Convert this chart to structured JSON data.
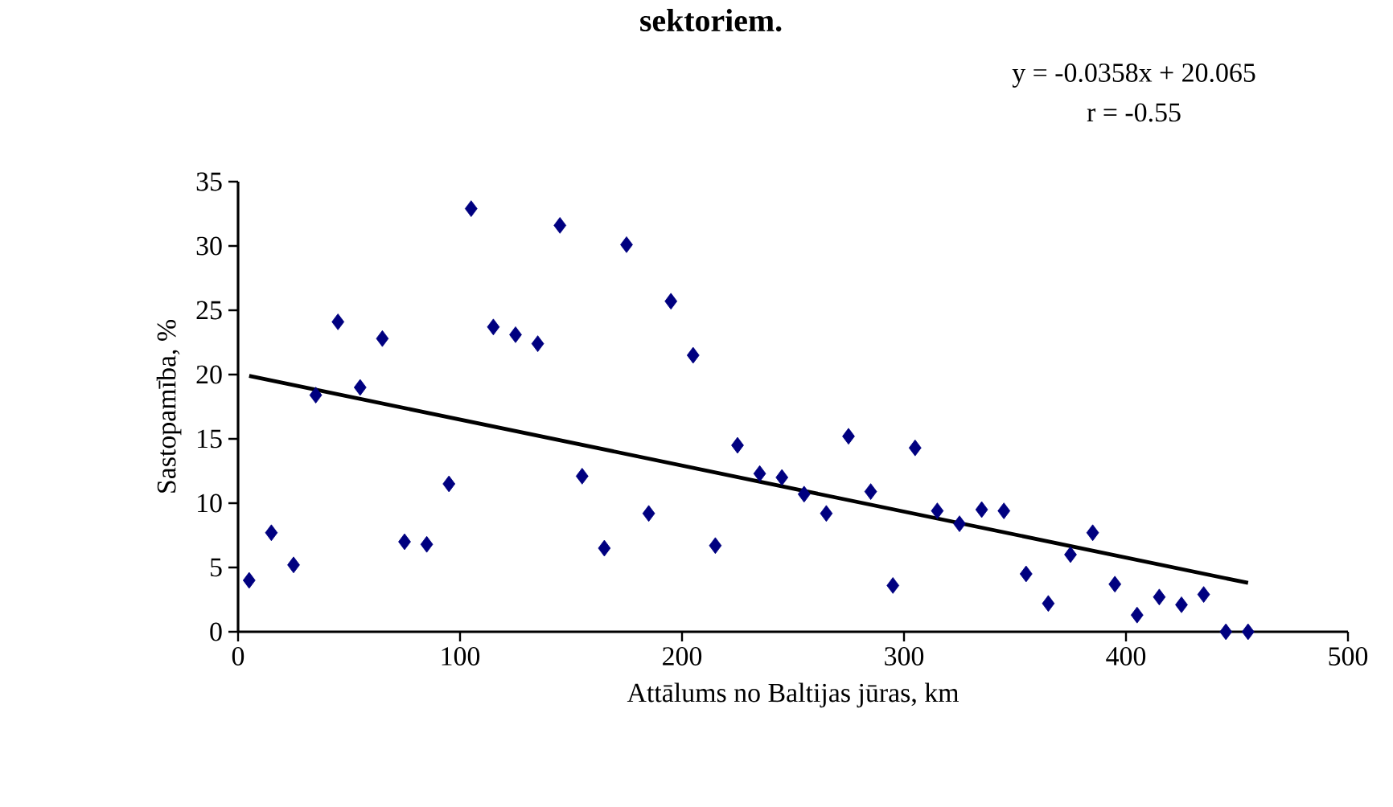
{
  "chart_data": {
    "type": "scatter",
    "title": "sektoriem.",
    "xlabel": "Attālums no Baltijas jūras, km",
    "ylabel": "Sastopamība, %",
    "annotations": [
      "y = -0.0358x + 20.065",
      "r = -0.55"
    ],
    "xlim": [
      0,
      500
    ],
    "xticks": [
      0,
      100,
      200,
      300,
      400,
      500
    ],
    "ylim": [
      0,
      35
    ],
    "yticks": [
      0,
      5,
      10,
      15,
      20,
      25,
      30,
      35
    ],
    "grid": false,
    "series": [
      {
        "marker": "diamond",
        "color": "#000080",
        "x": [
          5,
          15,
          25,
          35,
          45,
          55,
          65,
          75,
          85,
          95,
          105,
          115,
          125,
          135,
          145,
          155,
          165,
          175,
          185,
          195,
          205,
          215,
          225,
          235,
          245,
          255,
          265,
          275,
          285,
          295,
          305,
          315,
          325,
          335,
          345,
          355,
          365,
          375,
          385,
          395,
          405,
          415,
          425,
          435,
          445,
          455
        ],
        "values": [
          4.0,
          7.7,
          5.2,
          18.4,
          24.1,
          19.0,
          22.8,
          7.0,
          6.8,
          11.5,
          32.9,
          23.7,
          23.1,
          22.4,
          31.6,
          12.1,
          6.5,
          30.1,
          9.2,
          25.7,
          21.5,
          6.7,
          14.5,
          12.3,
          12.0,
          10.7,
          9.2,
          15.2,
          10.9,
          3.6,
          14.3,
          9.4,
          8.4,
          9.5,
          9.4,
          4.5,
          2.2,
          6.0,
          7.7,
          3.7,
          1.3,
          2.7,
          2.1,
          2.9,
          0,
          0
        ]
      },
      {
        "type": "line",
        "color": "#000000",
        "line_style": "solid",
        "x": [
          5,
          455
        ],
        "values": [
          19.9,
          3.8
        ]
      }
    ]
  }
}
